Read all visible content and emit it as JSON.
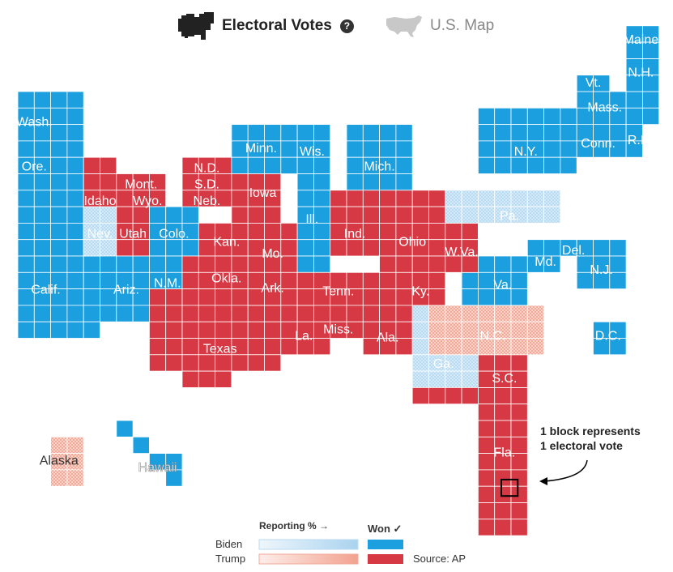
{
  "toggles": {
    "electoral_label": "Electoral Votes",
    "map_label": "U.S. Map",
    "help_glyph": "?",
    "icon_names": [
      "us-cartogram-icon",
      "us-map-icon"
    ]
  },
  "colors": {
    "biden_won": "#1b9fde",
    "trump_won": "#d63844",
    "biden_reporting": "#c7e2f5",
    "trump_reporting": "#f4b8a9",
    "grid_line": "#ffffff"
  },
  "map_data": {
    "type": "electoral-cartogram",
    "block_value": "1 electoral vote",
    "states": [
      {
        "name": "Wash.",
        "status": "biden_won",
        "votes": 12
      },
      {
        "name": "Ore.",
        "status": "biden_won",
        "votes": 7
      },
      {
        "name": "Calif.",
        "status": "biden_won",
        "votes": 55
      },
      {
        "name": "Nev.",
        "status": "biden_reporting",
        "votes": 6
      },
      {
        "name": "Idaho",
        "status": "trump_won",
        "votes": 4
      },
      {
        "name": "Mont.",
        "status": "trump_won",
        "votes": 3
      },
      {
        "name": "Wyo.",
        "status": "trump_won",
        "votes": 3
      },
      {
        "name": "Utah",
        "status": "trump_won",
        "votes": 6
      },
      {
        "name": "Colo.",
        "status": "biden_won",
        "votes": 9
      },
      {
        "name": "Ariz.",
        "status": "biden_won",
        "votes": 11
      },
      {
        "name": "N.M.",
        "status": "biden_won",
        "votes": 5
      },
      {
        "name": "N.D.",
        "status": "trump_won",
        "votes": 3
      },
      {
        "name": "S.D.",
        "status": "trump_won",
        "votes": 3
      },
      {
        "name": "Neb.",
        "status": "trump_won",
        "votes": 4
      },
      {
        "name": "Kan.",
        "status": "trump_won",
        "votes": 6
      },
      {
        "name": "Okla.",
        "status": "trump_won",
        "votes": 7
      },
      {
        "name": "Texas",
        "status": "trump_won",
        "votes": 38
      },
      {
        "name": "Minn.",
        "status": "biden_won",
        "votes": 10
      },
      {
        "name": "Iowa",
        "status": "trump_won",
        "votes": 6
      },
      {
        "name": "Mo.",
        "status": "trump_won",
        "votes": 10
      },
      {
        "name": "Ark.",
        "status": "trump_won",
        "votes": 6
      },
      {
        "name": "La.",
        "status": "trump_won",
        "votes": 8
      },
      {
        "name": "Wis.",
        "status": "biden_won",
        "votes": 10
      },
      {
        "name": "Ill.",
        "status": "biden_won",
        "votes": 20
      },
      {
        "name": "Mich.",
        "status": "biden_won",
        "votes": 16
      },
      {
        "name": "Ind.",
        "status": "trump_won",
        "votes": 11
      },
      {
        "name": "Ohio",
        "status": "trump_won",
        "votes": 18
      },
      {
        "name": "Ky.",
        "status": "trump_won",
        "votes": 8
      },
      {
        "name": "Tenn.",
        "status": "trump_won",
        "votes": 11
      },
      {
        "name": "Miss.",
        "status": "trump_won",
        "votes": 6
      },
      {
        "name": "Ala.",
        "status": "trump_won",
        "votes": 9
      },
      {
        "name": "Ga.",
        "status": "biden_reporting",
        "votes": 16
      },
      {
        "name": "Fla.",
        "status": "trump_won",
        "votes": 29
      },
      {
        "name": "S.C.",
        "status": "trump_won",
        "votes": 9
      },
      {
        "name": "N.C.",
        "status": "trump_reporting",
        "votes": 15
      },
      {
        "name": "Va.",
        "status": "biden_won",
        "votes": 13
      },
      {
        "name": "W.Va.",
        "status": "trump_won",
        "votes": 5
      },
      {
        "name": "Pa.",
        "status": "biden_reporting",
        "votes": 20
      },
      {
        "name": "N.Y.",
        "status": "biden_won",
        "votes": 29
      },
      {
        "name": "Md.",
        "status": "biden_won",
        "votes": 10
      },
      {
        "name": "Del.",
        "status": "biden_won",
        "votes": 3
      },
      {
        "name": "N.J.",
        "status": "biden_won",
        "votes": 14
      },
      {
        "name": "Conn.",
        "status": "biden_won",
        "votes": 7
      },
      {
        "name": "R.I.",
        "status": "biden_won",
        "votes": 4
      },
      {
        "name": "Mass.",
        "status": "biden_won",
        "votes": 11
      },
      {
        "name": "Vt.",
        "status": "biden_won",
        "votes": 3
      },
      {
        "name": "N.H.",
        "status": "biden_won",
        "votes": 4
      },
      {
        "name": "Maine",
        "status": "biden_won",
        "votes": 4
      },
      {
        "name": "D.C.",
        "status": "biden_won",
        "votes": 3
      },
      {
        "name": "Alaska",
        "status": "trump_reporting",
        "votes": 3
      },
      {
        "name": "Hawaii",
        "status": "biden_won",
        "votes": 4
      }
    ]
  },
  "annotation": {
    "line1": "1 block represents",
    "line2": "1 electoral vote"
  },
  "legend": {
    "reporting_label": "Reporting % →",
    "won_label": "Won ✓",
    "biden_label": "Biden",
    "trump_label": "Trump",
    "source": "Source: AP"
  }
}
